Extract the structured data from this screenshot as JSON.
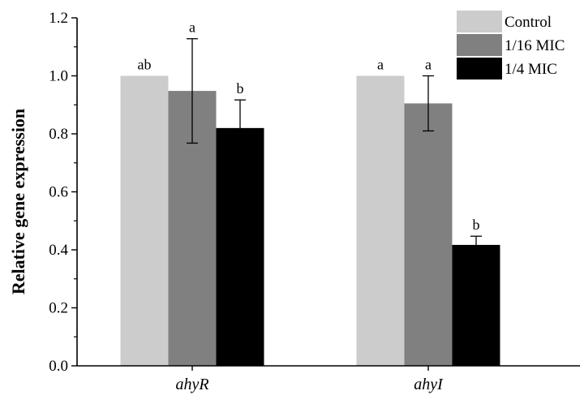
{
  "chart_data": {
    "type": "bar",
    "title": "",
    "xlabel": "",
    "ylabel": "Relative gene expression",
    "ylim": [
      0,
      1.2
    ],
    "yticks": [
      "0.0",
      "0.2",
      "0.4",
      "0.6",
      "0.8",
      "1.0",
      "1.2"
    ],
    "categories": [
      "ahyR",
      "ahyI"
    ],
    "series": [
      {
        "name": "Control",
        "color": "#cccccc",
        "values": [
          1.0,
          1.0
        ],
        "errors": [
          0,
          0
        ],
        "labels": [
          "ab",
          "a"
        ]
      },
      {
        "name": "1/16 MIC",
        "color": "#808080",
        "values": [
          0.948,
          0.905
        ],
        "errors": [
          0.18,
          0.095
        ],
        "labels": [
          "a",
          "a"
        ]
      },
      {
        "name": "1/4 MIC",
        "color": "#000000",
        "values": [
          0.82,
          0.417
        ],
        "errors": [
          0.097,
          0.03
        ],
        "labels": [
          "b",
          "b"
        ]
      }
    ],
    "grid": false,
    "legend_position": "top-right"
  }
}
